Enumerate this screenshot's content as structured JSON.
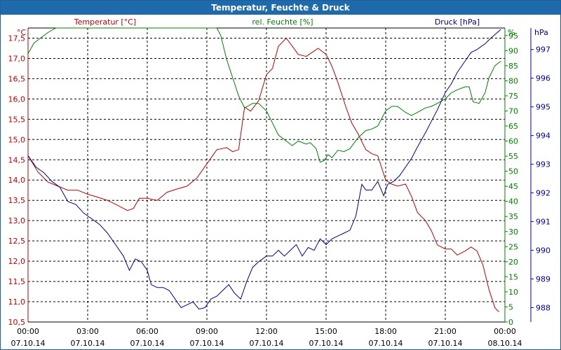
{
  "window": {
    "title": "Temperatur, Feuchte & Druck"
  },
  "colors": {
    "temperature": "#c00000",
    "humidity": "#008000",
    "pressure": "#00009c",
    "title_bg": "#1f6aab",
    "grid": "#000000"
  },
  "chart_data": {
    "type": "line",
    "title": "Temperatur, Feuchte & Druck",
    "grid": true,
    "x": {
      "label": "",
      "ticks": [
        {
          "time": "00:00",
          "date": "07.10.14"
        },
        {
          "time": "03:00",
          "date": "07.10.14"
        },
        {
          "time": "06:00",
          "date": "07.10.14"
        },
        {
          "time": "09:00",
          "date": "07.10.14"
        },
        {
          "time": "12:00",
          "date": "07.10.14"
        },
        {
          "time": "15:00",
          "date": "07.10.14"
        },
        {
          "time": "18:00",
          "date": "07.10.14"
        },
        {
          "time": "21:00",
          "date": "07.10.14"
        },
        {
          "time": "00:00",
          "date": "08.10.14"
        }
      ],
      "range_hours": [
        0,
        24
      ]
    },
    "axes": {
      "temperature": {
        "label": "Temperatur [°C]",
        "unit": "°C",
        "range": [
          10.5,
          17.75
        ],
        "ticks": [
          "10,5",
          "11,0",
          "11,5",
          "12,0",
          "12,5",
          "13,0",
          "13,5",
          "14,0",
          "14,5",
          "15,0",
          "15,5",
          "16,0",
          "16,5",
          "17,0",
          "17,5"
        ]
      },
      "humidity": {
        "label": "rel. Feuchte [%]",
        "unit": "%",
        "range": [
          0,
          97.5
        ],
        "ticks": [
          "0",
          "5",
          "10",
          "15",
          "20",
          "25",
          "30",
          "35",
          "40",
          "45",
          "50",
          "55",
          "60",
          "65",
          "70",
          "75",
          "80",
          "85",
          "90",
          "95"
        ]
      },
      "pressure": {
        "label": "Druck [hPa]",
        "unit": "hPa",
        "range": [
          987.5,
          997.75
        ],
        "ticks": [
          "988",
          "989",
          "990",
          "991",
          "992",
          "993",
          "994",
          "995",
          "996",
          "997"
        ]
      }
    },
    "series": [
      {
        "name": "Temperatur [°C]",
        "axis": "temperature",
        "points": [
          [
            0,
            14.6
          ],
          [
            0.5,
            14.2
          ],
          [
            1,
            13.95
          ],
          [
            1.5,
            13.85
          ],
          [
            2,
            13.75
          ],
          [
            2.5,
            13.75
          ],
          [
            3,
            13.65
          ],
          [
            3.5,
            13.58
          ],
          [
            4,
            13.5
          ],
          [
            4.5,
            13.38
          ],
          [
            5,
            13.25
          ],
          [
            5.3,
            13.3
          ],
          [
            5.6,
            13.55
          ],
          [
            6,
            13.55
          ],
          [
            6.5,
            13.5
          ],
          [
            7,
            13.7
          ],
          [
            7.5,
            13.78
          ],
          [
            8,
            13.85
          ],
          [
            8.5,
            14.05
          ],
          [
            9,
            14.4
          ],
          [
            9.5,
            14.75
          ],
          [
            10,
            14.8
          ],
          [
            10.3,
            14.7
          ],
          [
            10.6,
            14.75
          ],
          [
            10.9,
            15.8
          ],
          [
            11.2,
            15.7
          ],
          [
            11.6,
            15.95
          ],
          [
            12,
            16.6
          ],
          [
            12.3,
            16.75
          ],
          [
            12.6,
            17.3
          ],
          [
            13,
            17.5
          ],
          [
            13.3,
            17.3
          ],
          [
            13.6,
            17.1
          ],
          [
            14,
            17.05
          ],
          [
            14.3,
            17.15
          ],
          [
            14.6,
            17.25
          ],
          [
            15,
            17.1
          ],
          [
            15.3,
            16.8
          ],
          [
            15.6,
            16.4
          ],
          [
            16,
            15.8
          ],
          [
            16.3,
            15.4
          ],
          [
            16.6,
            15.15
          ],
          [
            17,
            14.75
          ],
          [
            17.3,
            14.65
          ],
          [
            17.6,
            14.6
          ],
          [
            18,
            14.0
          ],
          [
            18.3,
            13.9
          ],
          [
            18.6,
            13.85
          ],
          [
            19,
            13.9
          ],
          [
            19.3,
            13.6
          ],
          [
            19.6,
            13.2
          ],
          [
            20,
            13.0
          ],
          [
            20.3,
            12.75
          ],
          [
            20.6,
            12.4
          ],
          [
            21,
            12.3
          ],
          [
            21.3,
            12.3
          ],
          [
            21.6,
            12.15
          ],
          [
            22,
            12.25
          ],
          [
            22.3,
            12.35
          ],
          [
            22.6,
            12.25
          ],
          [
            22.9,
            11.9
          ],
          [
            23.2,
            11.3
          ],
          [
            23.5,
            10.85
          ],
          [
            23.7,
            10.75
          ]
        ]
      },
      {
        "name": "rel. Feuchte [%]",
        "axis": "humidity",
        "points": [
          [
            0,
            89
          ],
          [
            0.3,
            92.5
          ],
          [
            0.7,
            94.5
          ],
          [
            1,
            96
          ],
          [
            1.4,
            97.5
          ],
          [
            9.5,
            97.5
          ],
          [
            9.7,
            95
          ],
          [
            10,
            87
          ],
          [
            10.3,
            81
          ],
          [
            10.6,
            75
          ],
          [
            10.9,
            71
          ],
          [
            11.3,
            72.5
          ],
          [
            11.6,
            72.5
          ],
          [
            12,
            70
          ],
          [
            12.3,
            66
          ],
          [
            12.6,
            62
          ],
          [
            13,
            60
          ],
          [
            13.3,
            58.5
          ],
          [
            13.6,
            60
          ],
          [
            14,
            59
          ],
          [
            14.2,
            59.5
          ],
          [
            14.5,
            57.5
          ],
          [
            14.7,
            53
          ],
          [
            14.9,
            53.5
          ],
          [
            15.1,
            55.5
          ],
          [
            15.3,
            54.5
          ],
          [
            15.6,
            57
          ],
          [
            15.9,
            56.5
          ],
          [
            16.2,
            57.5
          ],
          [
            16.6,
            61
          ],
          [
            17,
            63.5
          ],
          [
            17.3,
            64
          ],
          [
            17.6,
            65
          ],
          [
            18,
            70
          ],
          [
            18.3,
            71.5
          ],
          [
            18.6,
            71.5
          ],
          [
            19,
            69.5
          ],
          [
            19.3,
            68.5
          ],
          [
            19.6,
            69.5
          ],
          [
            20,
            71
          ],
          [
            20.3,
            71.5
          ],
          [
            20.6,
            72.5
          ],
          [
            21,
            74
          ],
          [
            21.3,
            76
          ],
          [
            21.6,
            77
          ],
          [
            22,
            78
          ],
          [
            22.2,
            78
          ],
          [
            22.4,
            73
          ],
          [
            22.7,
            72.5
          ],
          [
            23,
            76
          ],
          [
            23.2,
            81
          ],
          [
            23.5,
            85
          ],
          [
            23.8,
            86.5
          ]
        ]
      },
      {
        "name": "Druck [hPa]",
        "axis": "pressure",
        "points": [
          [
            0,
            993.3
          ],
          [
            0.4,
            992.9
          ],
          [
            0.8,
            992.7
          ],
          [
            1.2,
            992.4
          ],
          [
            1.6,
            992.2
          ],
          [
            2,
            991.7
          ],
          [
            2.4,
            991.6
          ],
          [
            2.8,
            991.3
          ],
          [
            3.2,
            991.1
          ],
          [
            3.6,
            990.9
          ],
          [
            4,
            990.6
          ],
          [
            4.4,
            990.2
          ],
          [
            4.8,
            989.8
          ],
          [
            5.1,
            989.3
          ],
          [
            5.4,
            989.7
          ],
          [
            5.7,
            989.6
          ],
          [
            6,
            989.3
          ],
          [
            6.2,
            988.8
          ],
          [
            6.5,
            988.7
          ],
          [
            6.8,
            988.7
          ],
          [
            7.1,
            988.6
          ],
          [
            7.4,
            988.3
          ],
          [
            7.7,
            988.0
          ],
          [
            8,
            988.1
          ],
          [
            8.3,
            988.2
          ],
          [
            8.6,
            987.95
          ],
          [
            8.9,
            988.0
          ],
          [
            9.2,
            988.3
          ],
          [
            9.5,
            988.4
          ],
          [
            9.8,
            988.6
          ],
          [
            10.1,
            988.8
          ],
          [
            10.4,
            988.5
          ],
          [
            10.7,
            988.3
          ],
          [
            11,
            988.9
          ],
          [
            11.3,
            989.4
          ],
          [
            11.6,
            989.6
          ],
          [
            12,
            989.8
          ],
          [
            12.3,
            989.8
          ],
          [
            12.6,
            990.0
          ],
          [
            12.9,
            989.8
          ],
          [
            13.2,
            990.0
          ],
          [
            13.5,
            990.2
          ],
          [
            13.8,
            989.8
          ],
          [
            14.1,
            990.1
          ],
          [
            14.4,
            990.0
          ],
          [
            14.7,
            990.4
          ],
          [
            15,
            990.2
          ],
          [
            15.3,
            990.4
          ],
          [
            15.6,
            990.5
          ],
          [
            15.9,
            990.6
          ],
          [
            16.2,
            990.7
          ],
          [
            16.5,
            991.2
          ],
          [
            16.8,
            992.3
          ],
          [
            17,
            992.1
          ],
          [
            17.3,
            992.1
          ],
          [
            17.6,
            992.4
          ],
          [
            17.9,
            991.9
          ],
          [
            18.1,
            992.3
          ],
          [
            18.4,
            992.4
          ],
          [
            18.7,
            992.6
          ],
          [
            19,
            992.9
          ],
          [
            19.3,
            993.2
          ],
          [
            19.6,
            993.6
          ],
          [
            20,
            994.1
          ],
          [
            20.3,
            994.5
          ],
          [
            20.6,
            994.9
          ],
          [
            21,
            995.5
          ],
          [
            21.3,
            995.8
          ],
          [
            21.6,
            996.2
          ],
          [
            22,
            996.6
          ],
          [
            22.3,
            996.9
          ],
          [
            22.6,
            997.0
          ],
          [
            23,
            997.2
          ],
          [
            23.3,
            997.4
          ],
          [
            23.8,
            997.7
          ]
        ]
      }
    ]
  }
}
